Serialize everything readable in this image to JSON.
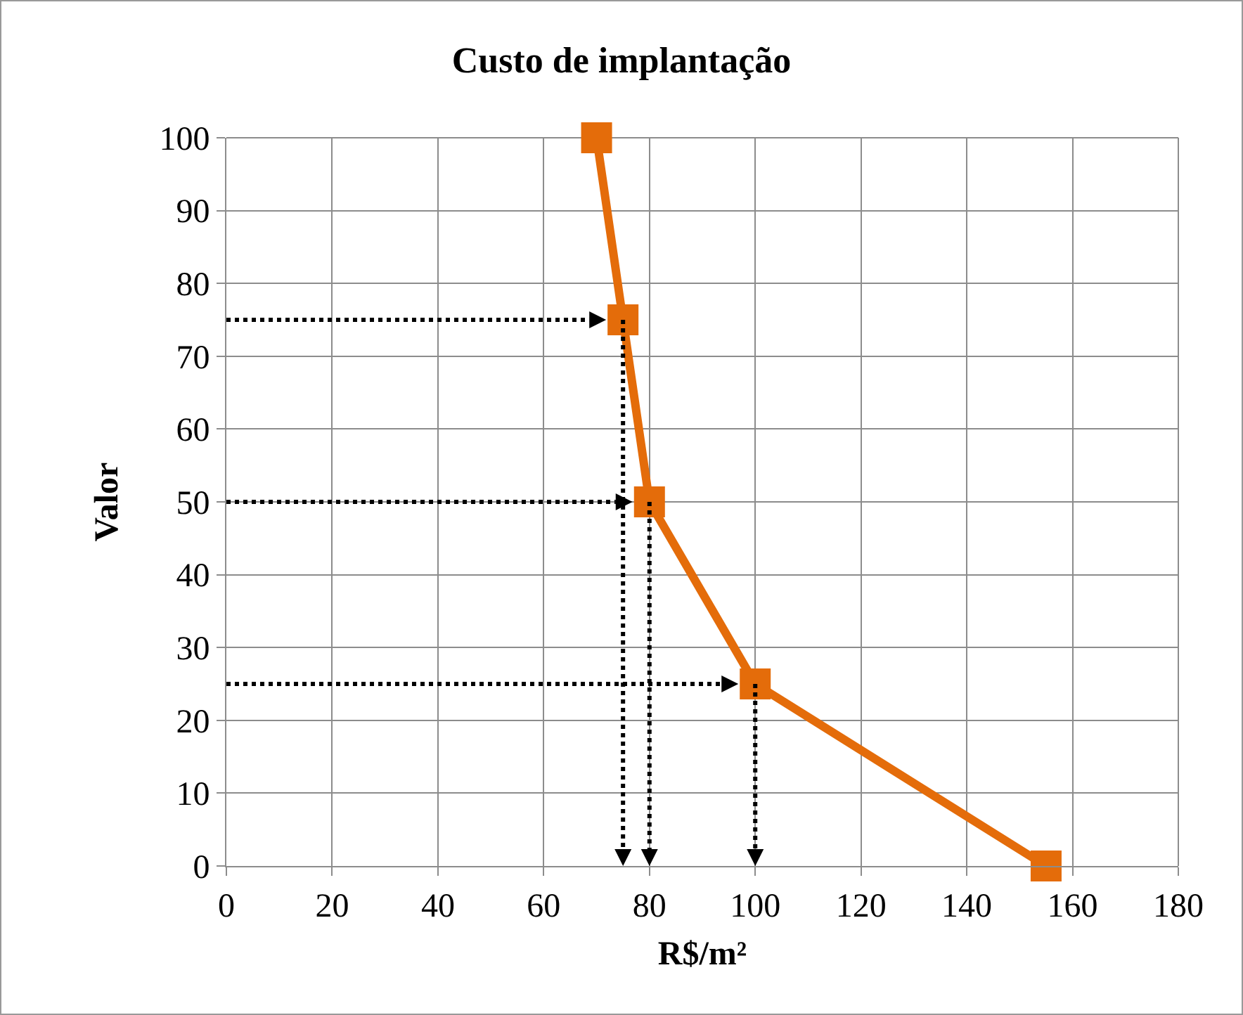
{
  "chart_data": {
    "type": "line",
    "title": "Custo de implantação",
    "xlabel": "R$/m²",
    "ylabel": "Valor",
    "x": [
      70,
      75,
      80,
      100,
      155
    ],
    "series": [
      {
        "color": "#e46c0a",
        "values": [
          100,
          75,
          50,
          25,
          0
        ]
      }
    ],
    "xlim": [
      0,
      180
    ],
    "xticks": [
      0,
      20,
      40,
      60,
      80,
      100,
      120,
      140,
      160,
      180
    ],
    "ylim": [
      0,
      100
    ],
    "yticks": [
      0,
      10,
      20,
      30,
      40,
      50,
      60,
      70,
      80,
      90,
      100
    ],
    "grid": true,
    "marker": "square",
    "line_style": "solid"
  }
}
